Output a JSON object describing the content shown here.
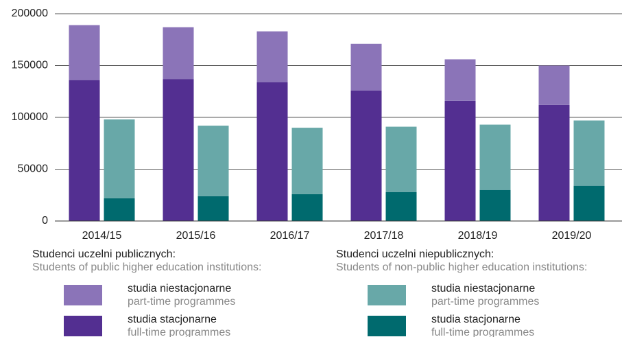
{
  "chart_data": {
    "type": "bar",
    "categories": [
      "2014/15",
      "2015/16",
      "2016/17",
      "2017/18",
      "2018/19",
      "2019/20"
    ],
    "groups": [
      {
        "title": "Studenci uczelni publicznych:",
        "subtitle": "Students of public higher education institutions:"
      },
      {
        "title": "Studenci uczelni niepublicznych:",
        "subtitle": "Students of non-public higher education institutions:"
      }
    ],
    "series": [
      {
        "name": "studia stacjonarne",
        "subtitle": "full-time programmes",
        "group": 0,
        "color": "#532f91",
        "values": [
          136000,
          137000,
          134000,
          126000,
          116000,
          112000
        ]
      },
      {
        "name": "studia niestacjonarne",
        "subtitle": "part-time programmes",
        "group": 0,
        "color": "#8b74b8",
        "values": [
          53000,
          50000,
          49000,
          45000,
          40000,
          38000
        ]
      },
      {
        "name": "studia stacjonarne",
        "subtitle": "full-time programmes",
        "group": 1,
        "color": "#006a6e",
        "values": [
          22000,
          24000,
          26000,
          28000,
          30000,
          34000
        ]
      },
      {
        "name": "studia niestacjonarne",
        "subtitle": "part-time programmes",
        "group": 1,
        "color": "#68a8a8",
        "values": [
          76000,
          68000,
          64000,
          63000,
          63000,
          63000
        ]
      }
    ],
    "ylim": [
      0,
      200000
    ],
    "yticks": [
      0,
      50000,
      100000,
      150000,
      200000
    ],
    "grid": true
  }
}
